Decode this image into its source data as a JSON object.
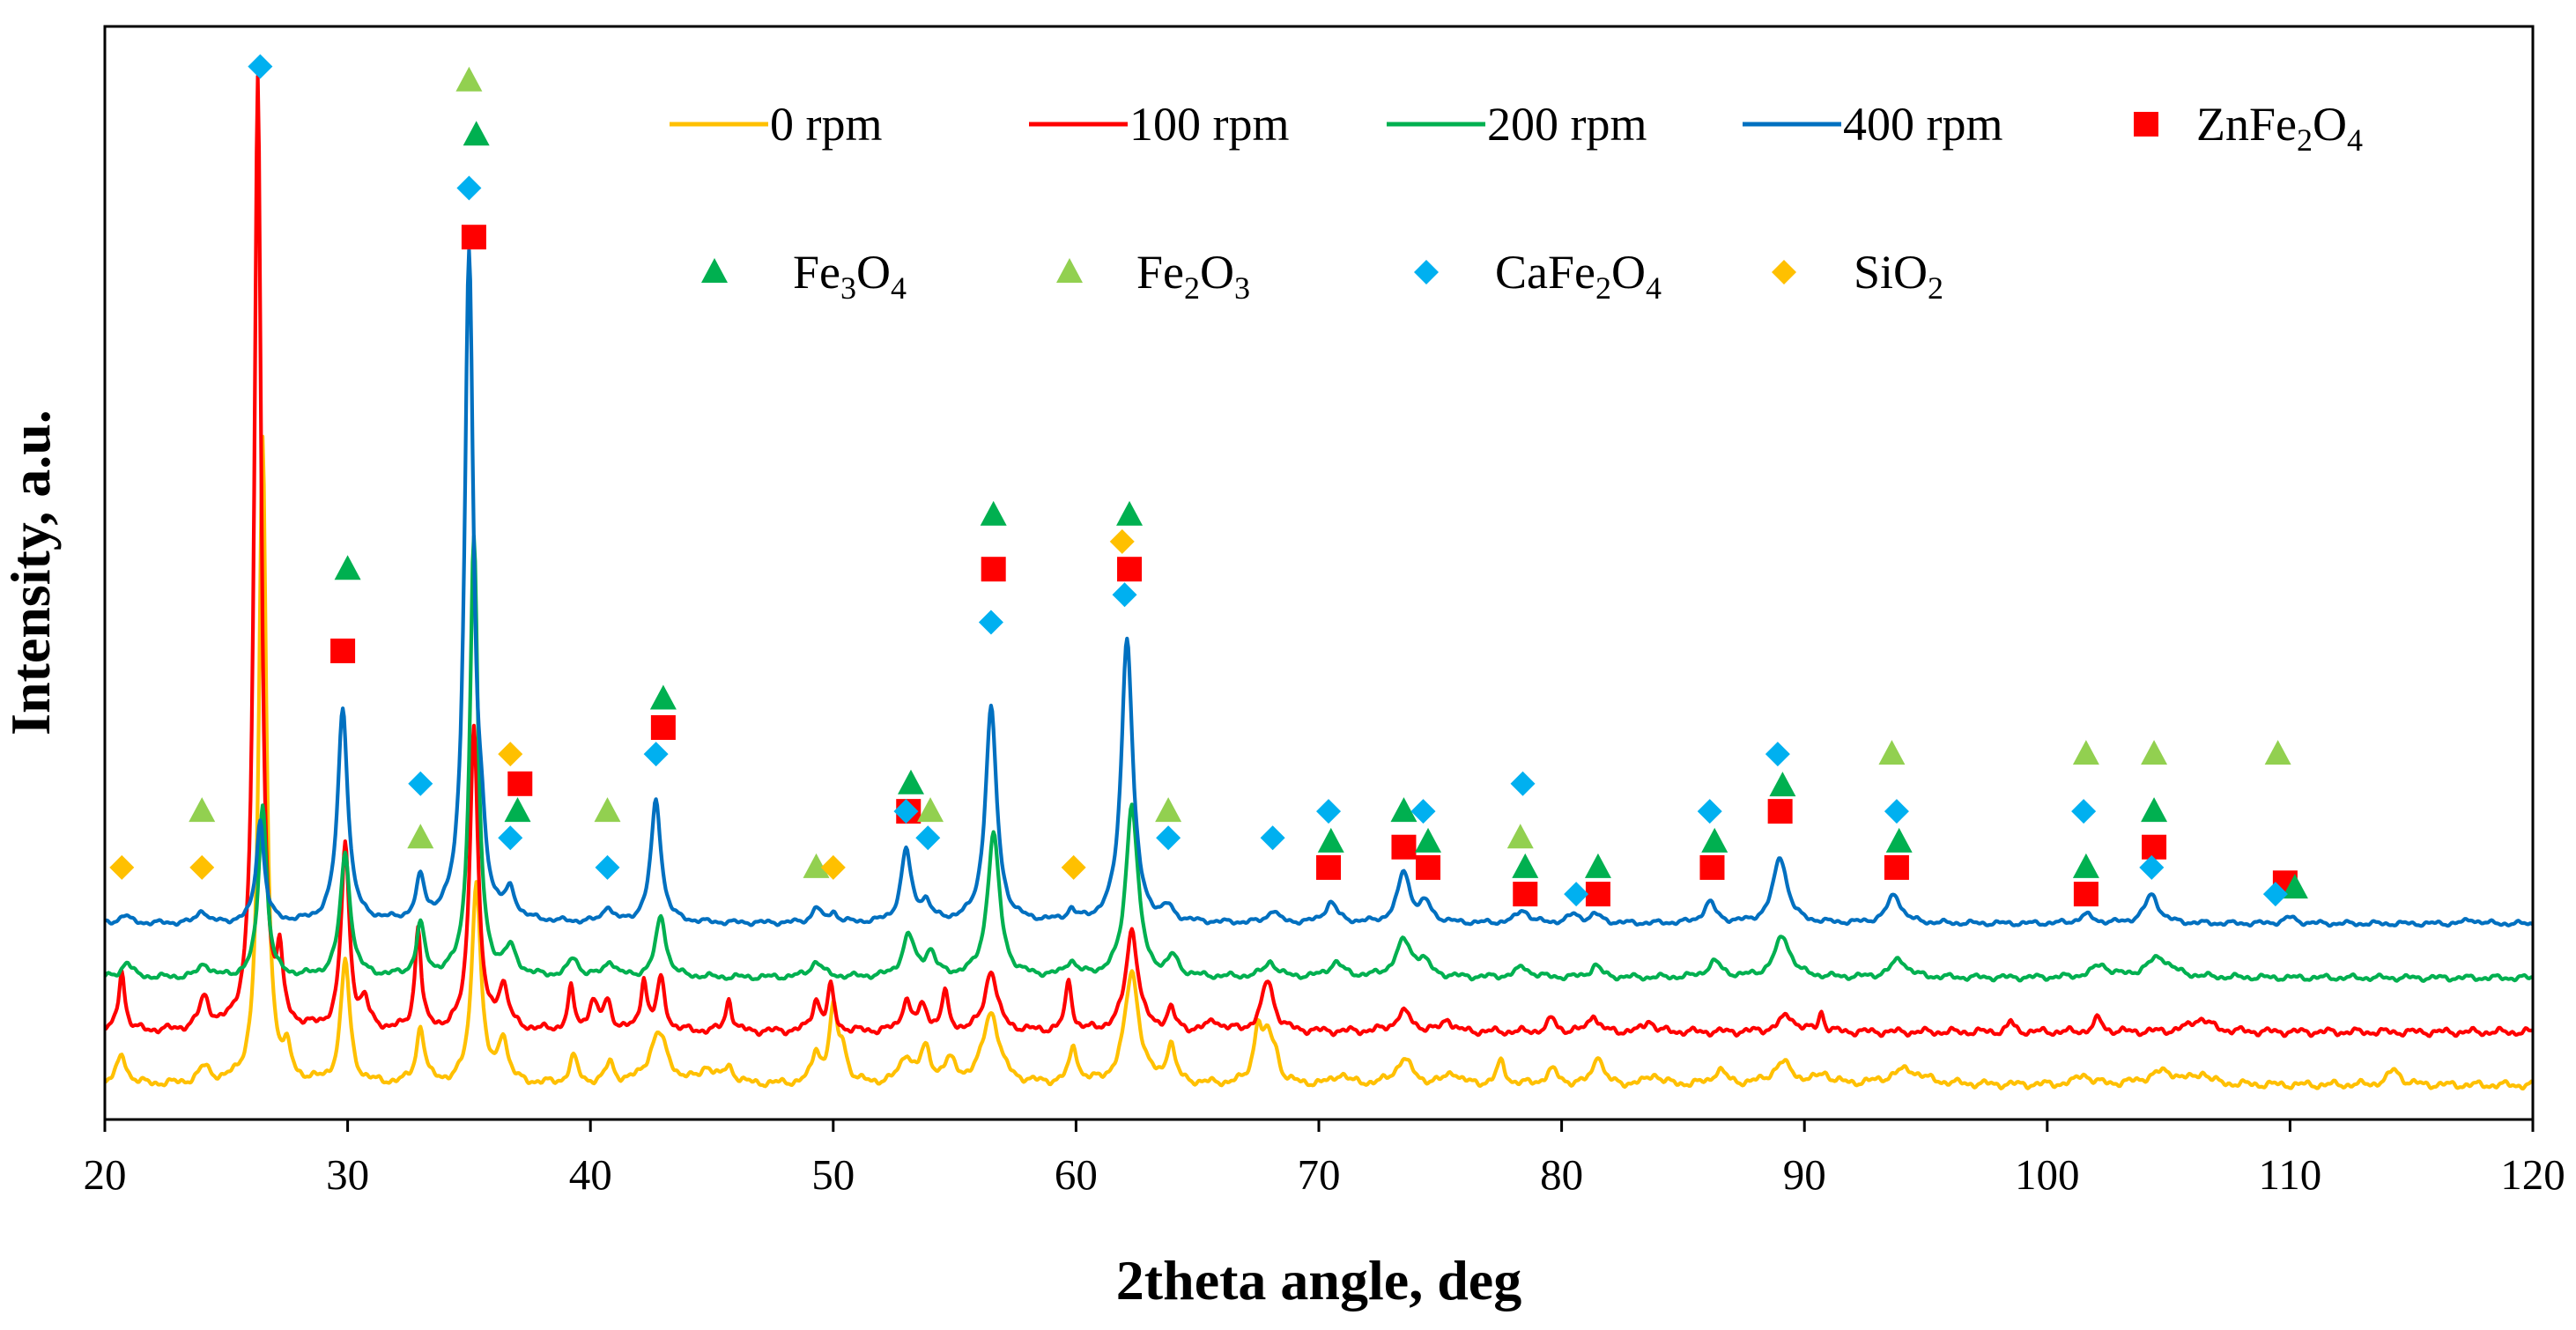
{
  "chart_data": {
    "type": "line",
    "title": "",
    "xlabel": "2theta angle, deg",
    "ylabel": "Intensity, a.u.",
    "xlim": [
      20,
      120
    ],
    "ylim": [
      0,
      100
    ],
    "x_ticks": [
      "20",
      "30",
      "40",
      "50",
      "60",
      "70",
      "80",
      "90",
      "100",
      "110",
      "120"
    ],
    "grid": false,
    "legend_position": "top",
    "series": [
      {
        "name": "0 rpm",
        "color": "#FFC000",
        "baseline": 0,
        "noise": 0.45,
        "peaks": [
          [
            20.7,
            2.8,
            0.25
          ],
          [
            24.1,
            1.5,
            0.3
          ],
          [
            26.5,
            63,
            0.18
          ],
          [
            27.5,
            2.5,
            0.2
          ],
          [
            29.9,
            12,
            0.22
          ],
          [
            33.0,
            5.5,
            0.2
          ],
          [
            35.3,
            20,
            0.22
          ],
          [
            36.4,
            4.5,
            0.22
          ],
          [
            39.3,
            2.6,
            0.2
          ],
          [
            40.8,
            2.0,
            0.2
          ],
          [
            42.8,
            5,
            0.45
          ],
          [
            44.8,
            1.5,
            0.3
          ],
          [
            45.7,
            1.6,
            0.25
          ],
          [
            49.3,
            3,
            0.2
          ],
          [
            50.0,
            7,
            0.2
          ],
          [
            50.4,
            3,
            0.2
          ],
          [
            53.0,
            2.6,
            0.3
          ],
          [
            53.8,
            3.2,
            0.25
          ],
          [
            54.8,
            2,
            0.3
          ],
          [
            56.5,
            7,
            0.4
          ],
          [
            59.9,
            3.5,
            0.2
          ],
          [
            62.3,
            11,
            0.35
          ],
          [
            63.9,
            3.8,
            0.2
          ],
          [
            67.5,
            5.5,
            0.22
          ],
          [
            67.9,
            3.5,
            0.2
          ],
          [
            68.2,
            2.5,
            0.2
          ],
          [
            70.9,
            1,
            0.3
          ],
          [
            73.5,
            2.5,
            0.4
          ],
          [
            75.5,
            1.2,
            0.3
          ],
          [
            77.5,
            2.2,
            0.2
          ],
          [
            79.6,
            1.4,
            0.3
          ],
          [
            81.5,
            3,
            0.22
          ],
          [
            83.8,
            1,
            0.3
          ],
          [
            86.5,
            1.4,
            0.3
          ],
          [
            89.1,
            2.1,
            0.5
          ],
          [
            90.8,
            1,
            0.3
          ],
          [
            94.2,
            1.5,
            0.8
          ],
          [
            101.5,
            1,
            0.3
          ],
          [
            104.8,
            1.3,
            0.8
          ],
          [
            106.4,
            1,
            0.3
          ],
          [
            114.3,
            1.5,
            0.3
          ]
        ]
      },
      {
        "name": "100 rpm",
        "color": "#FF0000",
        "baseline": 5.2,
        "noise": 0.45,
        "peaks": [
          [
            20.7,
            6,
            0.15
          ],
          [
            24.1,
            3,
            0.25
          ],
          [
            26.3,
            93,
            0.17
          ],
          [
            27.2,
            6,
            0.15
          ],
          [
            29.9,
            18,
            0.2
          ],
          [
            30.7,
            2.5,
            0.2
          ],
          [
            32.9,
            10,
            0.15
          ],
          [
            35.2,
            30,
            0.2
          ],
          [
            36.4,
            4.2,
            0.25
          ],
          [
            39.2,
            4,
            0.15
          ],
          [
            40.1,
            2.8,
            0.2
          ],
          [
            40.7,
            2.8,
            0.2
          ],
          [
            42.2,
            5,
            0.15
          ],
          [
            42.9,
            5,
            0.2
          ],
          [
            45.7,
            3.2,
            0.15
          ],
          [
            49.3,
            3,
            0.2
          ],
          [
            49.9,
            4.3,
            0.15
          ],
          [
            53.0,
            3,
            0.2
          ],
          [
            53.7,
            2.3,
            0.25
          ],
          [
            54.6,
            3.7,
            0.15
          ],
          [
            56.5,
            6,
            0.3
          ],
          [
            59.7,
            5,
            0.15
          ],
          [
            62.3,
            10,
            0.3
          ],
          [
            63.9,
            2,
            0.2
          ],
          [
            65.7,
            1,
            0.3
          ],
          [
            67.9,
            5,
            0.3
          ],
          [
            73.5,
            1.9,
            0.4
          ],
          [
            75.3,
            1.3,
            0.2
          ],
          [
            79.6,
            1.3,
            0.2
          ],
          [
            81.3,
            1.8,
            0.2
          ],
          [
            83.6,
            1.2,
            0.2
          ],
          [
            89.3,
            1.6,
            0.4
          ],
          [
            90.7,
            2,
            0.12
          ],
          [
            98.5,
            1,
            0.15
          ],
          [
            102.1,
            1.3,
            0.2
          ],
          [
            106.3,
            1.3,
            0.5
          ]
        ]
      },
      {
        "name": "200 rpm",
        "color": "#00B050",
        "baseline": 10.5,
        "noise": 0.35,
        "peaks": [
          [
            20.9,
            1.5,
            0.25
          ],
          [
            24.1,
            1.3,
            0.25
          ],
          [
            26.5,
            17,
            0.2
          ],
          [
            29.9,
            12,
            0.25
          ],
          [
            33.0,
            5,
            0.2
          ],
          [
            35.2,
            43,
            0.2
          ],
          [
            36.7,
            2.5,
            0.3
          ],
          [
            39.3,
            1.8,
            0.25
          ],
          [
            40.8,
            1.5,
            0.25
          ],
          [
            42.9,
            6,
            0.25
          ],
          [
            49.3,
            1.5,
            0.3
          ],
          [
            53.1,
            4,
            0.3
          ],
          [
            54.0,
            2.3,
            0.25
          ],
          [
            56.6,
            14,
            0.3
          ],
          [
            59.8,
            1.4,
            0.25
          ],
          [
            62.3,
            17,
            0.3
          ],
          [
            64.0,
            1.8,
            0.25
          ],
          [
            68.0,
            1.5,
            0.3
          ],
          [
            70.7,
            1.4,
            0.35
          ],
          [
            73.5,
            3.5,
            0.4
          ],
          [
            74.3,
            1.4,
            0.3
          ],
          [
            78.4,
            1,
            0.35
          ],
          [
            81.4,
            1.2,
            0.25
          ],
          [
            86.3,
            1.5,
            0.35
          ],
          [
            89.1,
            4,
            0.4
          ],
          [
            93.9,
            1.8,
            0.4
          ],
          [
            102.2,
            1.2,
            0.4
          ],
          [
            104.6,
            2,
            0.6
          ]
        ]
      },
      {
        "name": "400 rpm",
        "color": "#0070C0",
        "baseline": 15.8,
        "noise": 0.3,
        "peaks": [
          [
            20.8,
            0.8,
            0.25
          ],
          [
            24.0,
            1.3,
            0.2
          ],
          [
            26.4,
            10,
            0.2
          ],
          [
            29.8,
            21,
            0.25
          ],
          [
            33.0,
            4,
            0.2
          ],
          [
            35.0,
            65,
            0.22
          ],
          [
            35.5,
            5,
            0.2
          ],
          [
            36.7,
            2.5,
            0.25
          ],
          [
            40.7,
            1.5,
            0.2
          ],
          [
            42.7,
            12,
            0.25
          ],
          [
            49.3,
            1.5,
            0.2
          ],
          [
            50.0,
            1,
            0.2
          ],
          [
            53.0,
            7,
            0.25
          ],
          [
            53.8,
            1.8,
            0.25
          ],
          [
            56.5,
            21,
            0.28
          ],
          [
            59.8,
            1,
            0.2
          ],
          [
            62.1,
            28,
            0.28
          ],
          [
            63.8,
            1.2,
            0.25
          ],
          [
            68.1,
            1.2,
            0.25
          ],
          [
            70.5,
            2,
            0.3
          ],
          [
            73.5,
            5,
            0.3
          ],
          [
            74.4,
            1.8,
            0.3
          ],
          [
            78.4,
            1.3,
            0.3
          ],
          [
            80.5,
            0.8,
            0.3
          ],
          [
            81.4,
            0.8,
            0.3
          ],
          [
            86.1,
            2,
            0.3
          ],
          [
            89.0,
            6.5,
            0.35
          ],
          [
            93.7,
            2.8,
            0.35
          ],
          [
            101.6,
            0.8,
            0.35
          ],
          [
            104.3,
            2.8,
            0.35
          ],
          [
            110.0,
            0.6,
            0.3
          ],
          [
            117.5,
            0.4,
            0.3
          ]
        ]
      }
    ],
    "marker_series": [
      {
        "name": "ZnFe2O4",
        "legend_label": "ZnFe",
        "sub1": "2",
        "mid": "O",
        "sub2": "4",
        "shape": "square",
        "color": "#FF0000",
        "points": [
          [
            29.8,
            42.5
          ],
          [
            35.2,
            83
          ],
          [
            37.1,
            29.5
          ],
          [
            43.0,
            35
          ],
          [
            53.1,
            26.8
          ],
          [
            56.6,
            50.5
          ],
          [
            62.2,
            50.5
          ],
          [
            70.4,
            21.3
          ],
          [
            73.5,
            23.3
          ],
          [
            74.5,
            21.3
          ],
          [
            78.5,
            18.7
          ],
          [
            81.5,
            18.7
          ],
          [
            86.2,
            21.3
          ],
          [
            89.0,
            26.8
          ],
          [
            93.8,
            21.3
          ],
          [
            101.6,
            18.7
          ],
          [
            104.4,
            23.3
          ],
          [
            109.8,
            19.8
          ]
        ]
      },
      {
        "name": "Fe3O4",
        "legend_label": "Fe",
        "sub1": "3",
        "mid": "O",
        "sub2": "4",
        "shape": "triangle",
        "color": "#00B050",
        "points": [
          [
            30.0,
            50.5
          ],
          [
            35.3,
            93
          ],
          [
            37.0,
            26.8
          ],
          [
            43.0,
            37.8
          ],
          [
            53.2,
            29.5
          ],
          [
            56.6,
            55.8
          ],
          [
            62.2,
            55.8
          ],
          [
            70.5,
            23.8
          ],
          [
            73.5,
            26.8
          ],
          [
            74.5,
            23.8
          ],
          [
            78.5,
            21.3
          ],
          [
            81.5,
            21.3
          ],
          [
            86.3,
            23.8
          ],
          [
            89.1,
            29.3
          ],
          [
            93.9,
            23.8
          ],
          [
            101.6,
            21.3
          ],
          [
            104.4,
            26.8
          ],
          [
            110.2,
            19.3
          ]
        ]
      },
      {
        "name": "Fe2O3",
        "legend_label": "Fe",
        "sub1": "2",
        "mid": "O",
        "sub2": "3",
        "shape": "triangle",
        "color": "#92D050",
        "points": [
          [
            24.0,
            26.8
          ],
          [
            33.0,
            24.2
          ],
          [
            35.0,
            98.3
          ],
          [
            40.7,
            26.8
          ],
          [
            49.3,
            21.3
          ],
          [
            54.0,
            26.8
          ],
          [
            63.8,
            26.8
          ],
          [
            78.3,
            24.2
          ],
          [
            93.6,
            32.4
          ],
          [
            101.6,
            32.4
          ],
          [
            104.4,
            32.4
          ],
          [
            109.5,
            32.4
          ]
        ]
      },
      {
        "name": "CaFe2O4",
        "legend_label": "CaFe",
        "sub1": "2",
        "mid": "O",
        "sub2": "4",
        "shape": "diamond",
        "color": "#00B0F0",
        "points": [
          [
            26.4,
            99.7
          ],
          [
            35.0,
            87.8
          ],
          [
            33.0,
            29.5
          ],
          [
            36.7,
            24.2
          ],
          [
            40.7,
            21.3
          ],
          [
            42.7,
            32.4
          ],
          [
            53.0,
            26.8
          ],
          [
            53.9,
            24.2
          ],
          [
            56.5,
            45.3
          ],
          [
            62.0,
            48
          ],
          [
            63.8,
            24.2
          ],
          [
            68.1,
            24.2
          ],
          [
            70.4,
            26.8
          ],
          [
            74.3,
            26.8
          ],
          [
            78.4,
            29.5
          ],
          [
            80.6,
            18.7
          ],
          [
            86.1,
            26.8
          ],
          [
            88.9,
            32.4
          ],
          [
            93.8,
            26.8
          ],
          [
            101.5,
            26.8
          ],
          [
            104.3,
            21.3
          ],
          [
            109.4,
            18.7
          ]
        ]
      },
      {
        "name": "SiO2",
        "legend_label": "SiO",
        "sub1": "2",
        "mid": "",
        "sub2": "",
        "shape": "diamond",
        "color": "#FFC000",
        "points": [
          [
            20.7,
            21.3
          ],
          [
            24.0,
            21.3
          ],
          [
            36.7,
            32.4
          ],
          [
            50.0,
            21.3
          ],
          [
            59.9,
            21.3
          ],
          [
            61.9,
            53.2
          ]
        ]
      }
    ]
  }
}
